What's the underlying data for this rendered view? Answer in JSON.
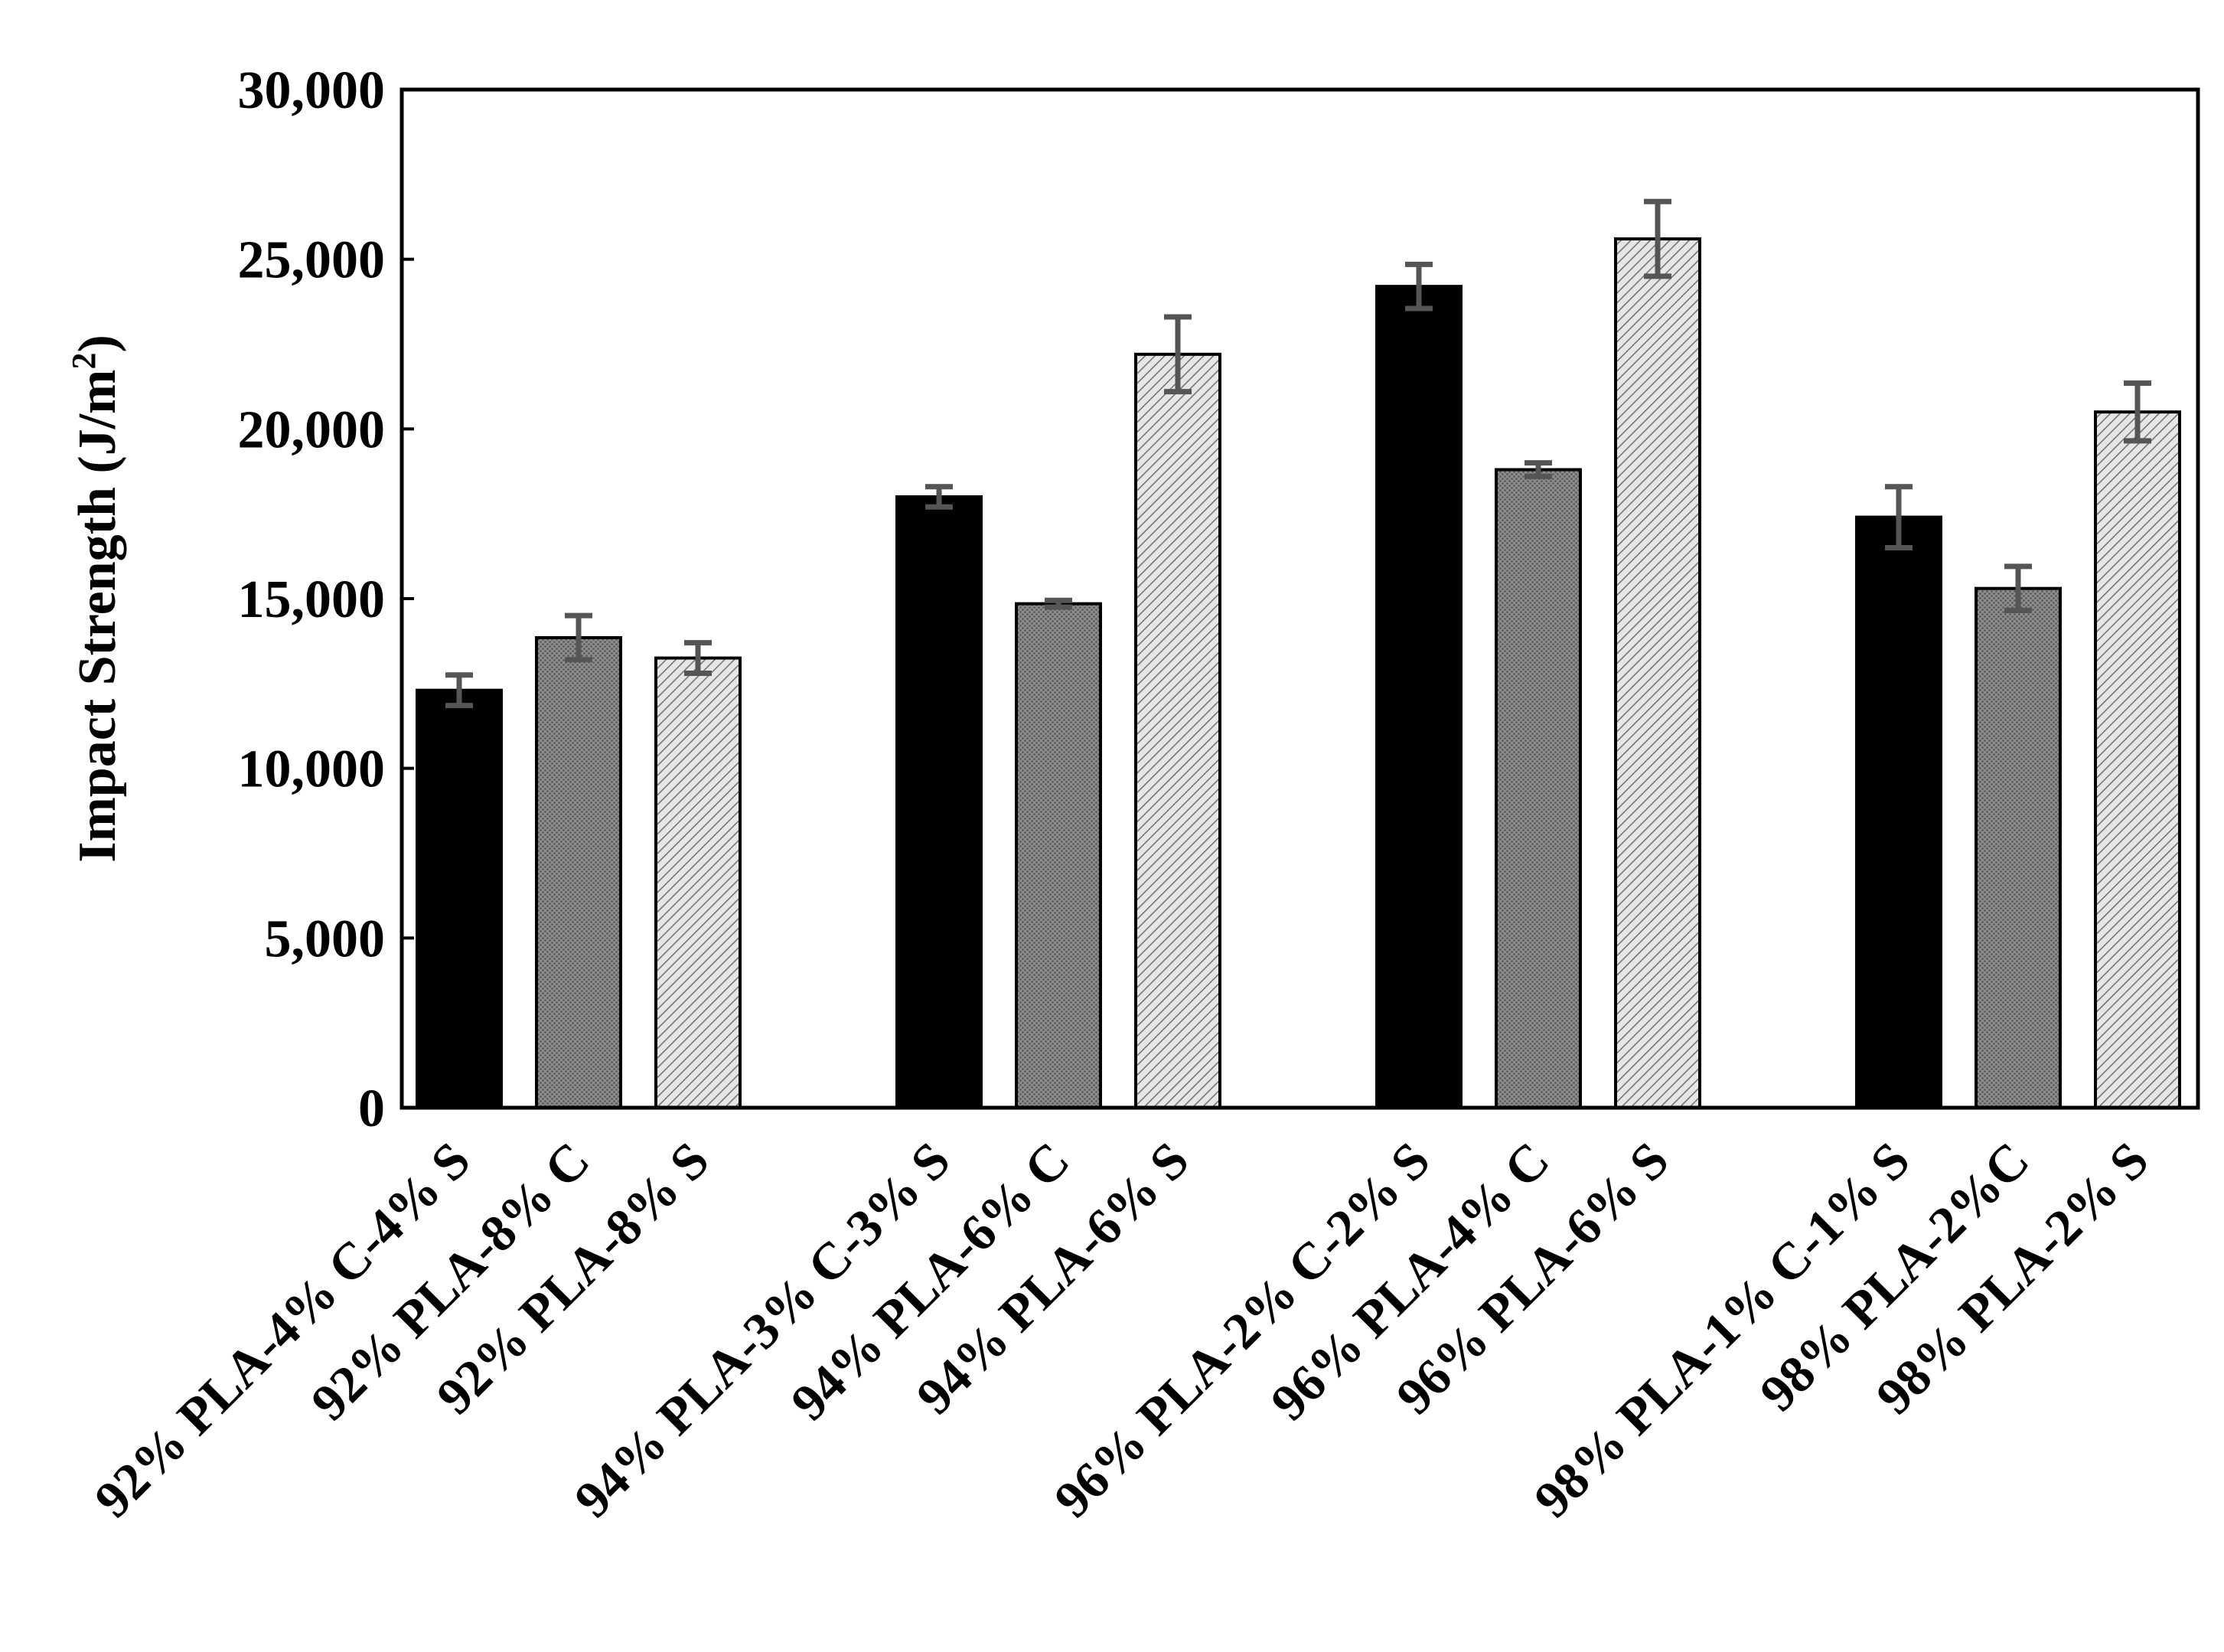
{
  "chart_data": {
    "type": "bar",
    "title": "",
    "xlabel": "",
    "ylabel": "Impact  Strength (J/m",
    "ylabel_superscript": "2",
    "ylabel_suffix": ")",
    "ylim": [
      0,
      30000
    ],
    "y_ticks": [
      0,
      5000,
      10000,
      15000,
      20000,
      25000,
      30000
    ],
    "y_tick_labels": [
      "0",
      "5,000",
      "10,000",
      "15,000",
      "20,000",
      "25,000",
      "30,000"
    ],
    "grid": false,
    "legend": "none",
    "bars": [
      {
        "label": "92% PLA-4% C-4% S",
        "value": 12300,
        "error": 450,
        "group": 0,
        "style": "solid"
      },
      {
        "label": "92% PLA-8% C",
        "value": 13850,
        "error": 650,
        "group": 0,
        "style": "dots"
      },
      {
        "label": "92% PLA-8% S",
        "value": 13250,
        "error": 450,
        "group": 0,
        "style": "hatch"
      },
      {
        "label": "94% PLA-3% C-3% S",
        "value": 18000,
        "error": 300,
        "group": 1,
        "style": "solid"
      },
      {
        "label": "94% PLA-6% C",
        "value": 14850,
        "error": 100,
        "group": 1,
        "style": "dots"
      },
      {
        "label": "94% PLA-6% S",
        "value": 22200,
        "error": 1100,
        "group": 1,
        "style": "hatch"
      },
      {
        "label": "96% PLA-2% C-2% S",
        "value": 24200,
        "error": 650,
        "group": 2,
        "style": "solid"
      },
      {
        "label": "96% PLA-4% C",
        "value": 18800,
        "error": 200,
        "group": 2,
        "style": "dots"
      },
      {
        "label": "96% PLA-6% S",
        "value": 25600,
        "error": 1100,
        "group": 2,
        "style": "hatch"
      },
      {
        "label": "98% PLA-1% C-1% S",
        "value": 17400,
        "error": 900,
        "group": 3,
        "style": "solid"
      },
      {
        "label": "98% PLA-2%C",
        "value": 15300,
        "error": 650,
        "group": 3,
        "style": "dots"
      },
      {
        "label": "98% PLA-2% S",
        "value": 20500,
        "error": 850,
        "group": 3,
        "style": "hatch"
      }
    ]
  },
  "colors": {
    "solid": "#000000",
    "dots_bg": "#8c8c8c",
    "dots_fg": "#555555",
    "hatch_bg": "#e6e6e6",
    "hatch_line": "#707070",
    "error_bar": "#555555",
    "axis": "#000000"
  }
}
